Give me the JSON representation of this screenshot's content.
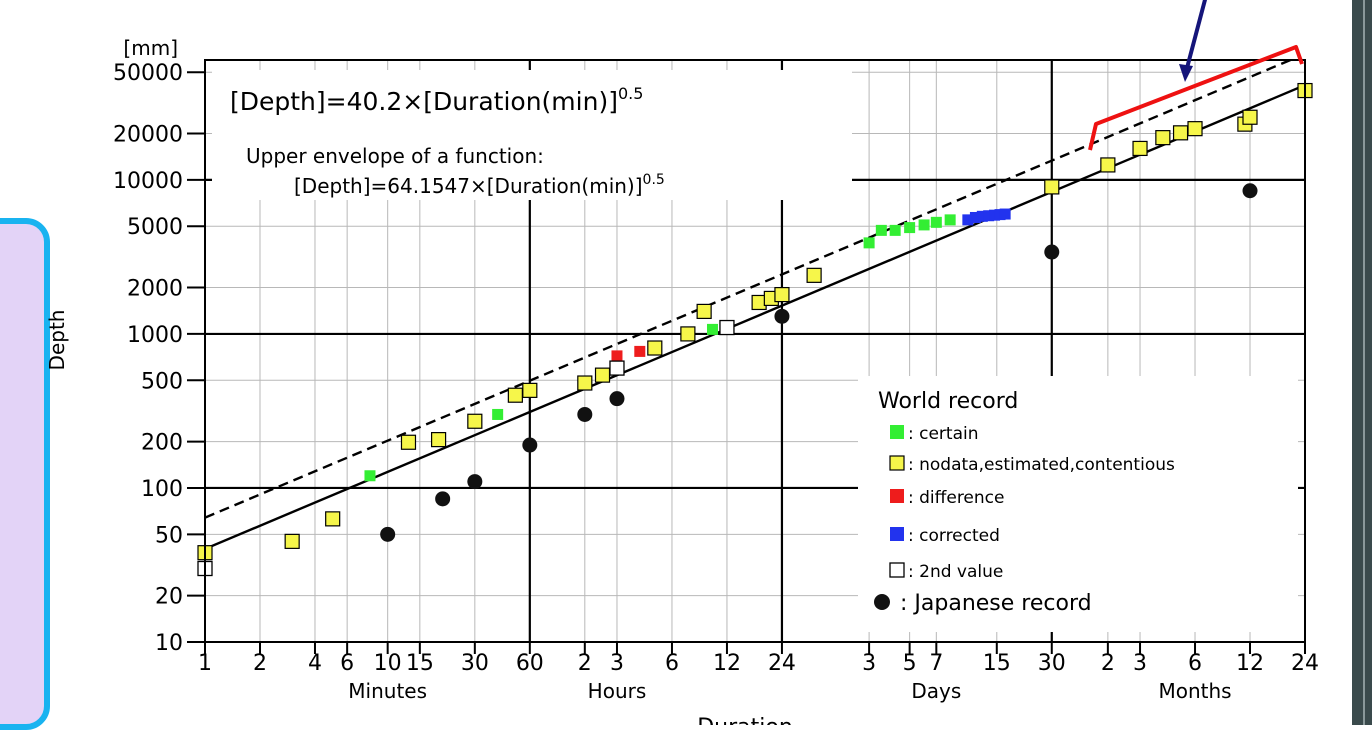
{
  "chart_data": {
    "type": "scatter",
    "x_scale": "log",
    "y_scale": "log",
    "y_unit": "[mm]",
    "ylabel": "Depth",
    "xlabel": "Duration",
    "xlim_minutes": [
      1,
      1051200
    ],
    "ylim": [
      10,
      60000
    ],
    "grid": true,
    "y_ticks": [
      {
        "v": 50000,
        "label": "50000"
      },
      {
        "v": 20000,
        "label": "20000"
      },
      {
        "v": 10000,
        "label": "10000"
      },
      {
        "v": 5000,
        "label": "5000"
      },
      {
        "v": 2000,
        "label": "2000"
      },
      {
        "v": 1000,
        "label": "1000"
      },
      {
        "v": 500,
        "label": "500"
      },
      {
        "v": 200,
        "label": "200"
      },
      {
        "v": 100,
        "label": "100"
      },
      {
        "v": 50,
        "label": "50"
      },
      {
        "v": 20,
        "label": "20"
      },
      {
        "v": 10,
        "label": "10"
      }
    ],
    "x_ticks": [
      {
        "v": 1,
        "label": "1"
      },
      {
        "v": 2,
        "label": "2"
      },
      {
        "v": 4,
        "label": "4"
      },
      {
        "v": 6,
        "label": "6"
      },
      {
        "v": 10,
        "label": "10"
      },
      {
        "v": 15,
        "label": "15"
      },
      {
        "v": 30,
        "label": "30"
      },
      {
        "v": 60,
        "label": "60"
      },
      {
        "v": 120,
        "label": "2"
      },
      {
        "v": 180,
        "label": "3"
      },
      {
        "v": 360,
        "label": "6"
      },
      {
        "v": 720,
        "label": "12"
      },
      {
        "v": 1440,
        "label": "24"
      },
      {
        "v": 4320,
        "label": "3"
      },
      {
        "v": 7200,
        "label": "5"
      },
      {
        "v": 10080,
        "label": "7"
      },
      {
        "v": 21600,
        "label": "15"
      },
      {
        "v": 43200,
        "label": "30"
      },
      {
        "v": 87600,
        "label": "2"
      },
      {
        "v": 131400,
        "label": "3"
      },
      {
        "v": 262800,
        "label": "6"
      },
      {
        "v": 525600,
        "label": "12"
      },
      {
        "v": 1051200,
        "label": "24"
      }
    ],
    "x_groups": [
      {
        "label": "Minutes",
        "at": 10
      },
      {
        "label": "Hours",
        "at": 180
      },
      {
        "label": "Days",
        "at": 10080
      },
      {
        "label": "Months",
        "at": 262800
      }
    ],
    "major_x_lines": [
      60,
      1440,
      43200
    ],
    "major_y_lines": [
      100,
      1000,
      10000
    ],
    "equation": {
      "prefix": "[Depth]=40.2×[Duration(min)]",
      "exponent": "0.5"
    },
    "envelope_caption": "Upper envelope of a function:",
    "envelope_equation": {
      "prefix": "[Depth]=64.1547×[Duration(min)]",
      "exponent": "0.5"
    },
    "lines": [
      {
        "name": "fit",
        "coef": 40.2,
        "power": 0.5,
        "style": "solid"
      },
      {
        "name": "envelope",
        "coef": 64.1547,
        "power": 0.5,
        "style": "dashed"
      }
    ],
    "legend": {
      "title": "World record",
      "entries": [
        {
          "key": "certain",
          "label": ": certain",
          "symbol": "square",
          "color": "#33ee33"
        },
        {
          "key": "nodata",
          "label": ": nodata,estimated,contentious",
          "symbol": "square",
          "color": "#f6f64a"
        },
        {
          "key": "difference",
          "label": ": difference",
          "symbol": "square",
          "color": "#ee1c1c"
        },
        {
          "key": "corrected",
          "label": ": corrected",
          "symbol": "square",
          "color": "#2233ee"
        },
        {
          "key": "second",
          "label": ": 2nd value",
          "symbol": "open-square",
          "color": "#000000"
        },
        {
          "key": "japan",
          "label": ": Japanese record",
          "symbol": "circle",
          "color": "#111111"
        }
      ]
    },
    "series": [
      {
        "key": "nodata",
        "points": [
          [
            1,
            38
          ],
          [
            3,
            45
          ],
          [
            5,
            63
          ],
          [
            13,
            198
          ],
          [
            19,
            206
          ],
          [
            30,
            271
          ],
          [
            50,
            400
          ],
          [
            60,
            430
          ],
          [
            120,
            480
          ],
          [
            150,
            540
          ],
          [
            290,
            810
          ],
          [
            440,
            1000
          ],
          [
            540,
            1400
          ],
          [
            1080,
            1600
          ],
          [
            1260,
            1700
          ],
          [
            1440,
            1800
          ],
          [
            2160,
            2400
          ],
          [
            43200,
            9000
          ],
          [
            87600,
            12500
          ],
          [
            131400,
            16000
          ],
          [
            175200,
            18800
          ],
          [
            219000,
            20200
          ],
          [
            262800,
            21500
          ],
          [
            492750,
            23000
          ],
          [
            525600,
            25500
          ],
          [
            1051200,
            38000
          ]
        ]
      },
      {
        "key": "certain",
        "points": [
          [
            8,
            120
          ],
          [
            40,
            300
          ],
          [
            600,
            1070
          ],
          [
            4320,
            3900
          ],
          [
            5040,
            4700
          ],
          [
            6000,
            4700
          ],
          [
            7200,
            4900
          ],
          [
            8640,
            5100
          ],
          [
            10080,
            5300
          ],
          [
            12000,
            5500
          ]
        ]
      },
      {
        "key": "difference",
        "points": [
          [
            180,
            720
          ],
          [
            240,
            770
          ]
        ]
      },
      {
        "key": "corrected",
        "points": [
          [
            15000,
            5500
          ],
          [
            16500,
            5700
          ],
          [
            18000,
            5800
          ],
          [
            19500,
            5850
          ],
          [
            21000,
            5900
          ],
          [
            22500,
            5950
          ],
          [
            24000,
            6000
          ]
        ]
      },
      {
        "key": "second",
        "points": [
          [
            1,
            30
          ],
          [
            180,
            600
          ],
          [
            720,
            1100
          ]
        ]
      },
      {
        "key": "japan",
        "points": [
          [
            10,
            50
          ],
          [
            20,
            85
          ],
          [
            30,
            110
          ],
          [
            60,
            190
          ],
          [
            120,
            300
          ],
          [
            180,
            380
          ],
          [
            1440,
            1300
          ],
          [
            43200,
            3400
          ],
          [
            525600,
            8500
          ]
        ]
      }
    ]
  }
}
